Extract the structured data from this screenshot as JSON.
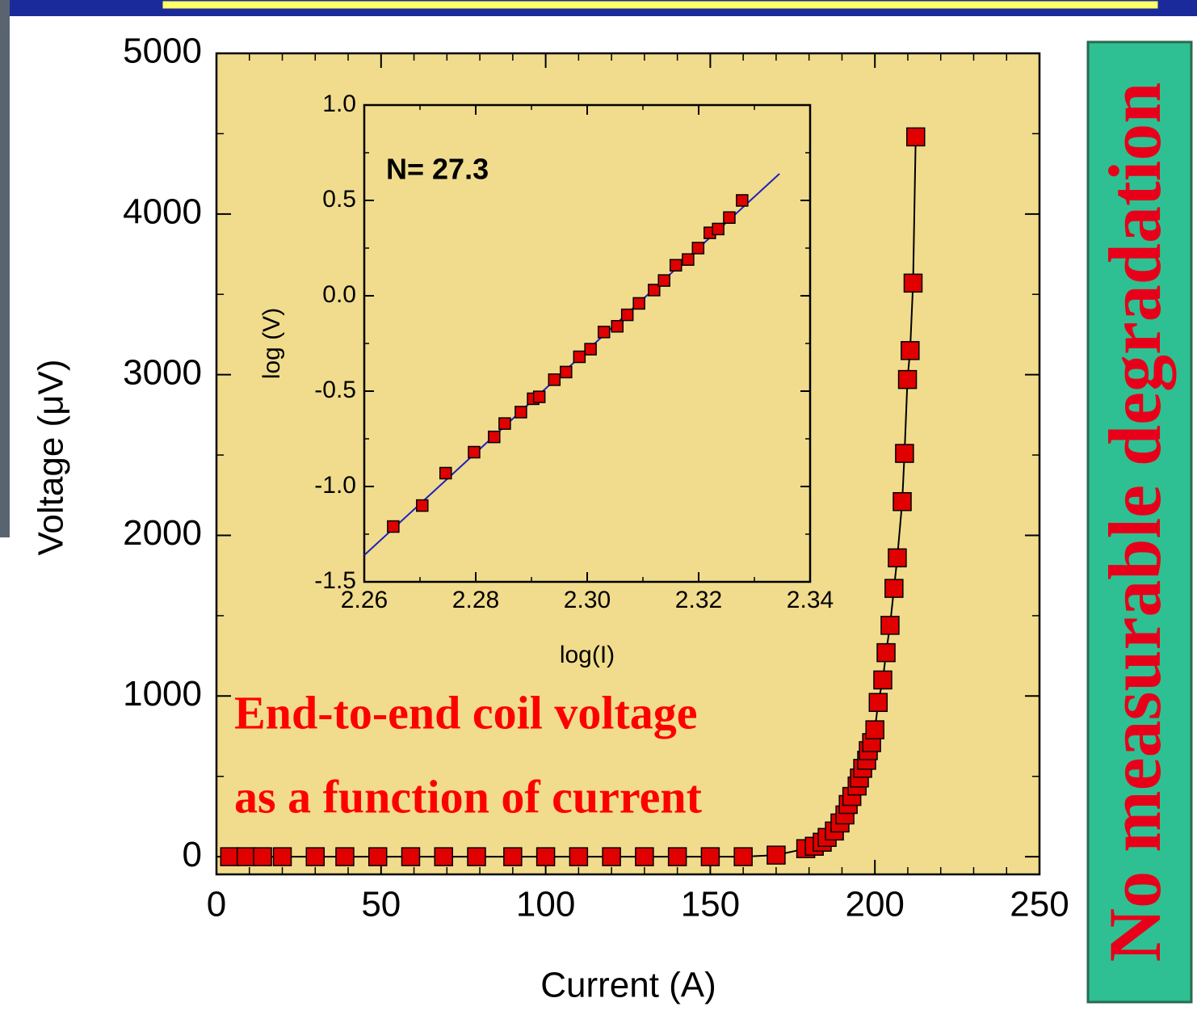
{
  "chart_data": [
    {
      "type": "line",
      "x_label": "Current (A)",
      "y_label": "Voltage (μV)",
      "xlim": [
        0,
        250
      ],
      "xticks": [
        0,
        50,
        100,
        150,
        200,
        250
      ],
      "ylim": [
        -110,
        5000
      ],
      "yticks": [
        0,
        1000,
        2000,
        3000,
        4000,
        5000
      ],
      "background": "#f0dc8c",
      "x": [
        4,
        9,
        14,
        20,
        30,
        39,
        49,
        59,
        69,
        79,
        90,
        100,
        110,
        120,
        130,
        140,
        150,
        160,
        170,
        179,
        181.6,
        184,
        185.5,
        187.7,
        189.4,
        190.9,
        191.9,
        193,
        194.6,
        195.3,
        196.3,
        197.5,
        198,
        199,
        200,
        201,
        202.4,
        203.4,
        204.6,
        205.8,
        206.8,
        208.3,
        209,
        209.9,
        210.7,
        211.6,
        212.4
      ],
      "series": [
        {
          "color": "#e00000",
          "line_color": "#000000",
          "values": [
            0,
            0,
            0,
            0,
            0,
            0,
            0,
            0,
            0,
            0,
            0,
            0,
            0,
            0,
            0,
            0,
            0,
            0,
            10,
            50,
            65,
            90,
            120,
            160,
            210,
            260,
            325,
            375,
            440,
            490,
            550,
            600,
            660,
            710,
            790,
            960,
            1100,
            1270,
            1440,
            1670,
            1860,
            2210,
            2510,
            2970,
            3150,
            3570,
            4480
          ]
        }
      ],
      "annotations": [
        "End-to-end coil voltage",
        "as a function of current"
      ],
      "annotation_color": "#ff0000"
    },
    {
      "type": "scatter",
      "x_label": "log(I)",
      "y_label": "log (V)",
      "xlim": [
        2.26,
        2.34
      ],
      "xticks": [
        2.26,
        2.28,
        {
          "value": 2.3,
          "label": "2.30"
        },
        2.32,
        2.34
      ],
      "ylim": [
        -1.5,
        1.0
      ],
      "yticks": [
        -1.5,
        {
          "value": -1,
          "label": "-1.0"
        },
        -0.5,
        {
          "value": 0,
          "label": "0.0"
        },
        0.5,
        {
          "value": 1,
          "label": "1.0"
        }
      ],
      "background": "#f0dc8c",
      "x": [
        2.2652,
        2.2704,
        2.2746,
        2.2797,
        2.2833,
        2.2852,
        2.2881,
        2.2903,
        2.2914,
        2.2941,
        2.2962,
        2.2986,
        2.3006,
        2.303,
        2.3054,
        2.3072,
        2.3093,
        2.312,
        2.3138,
        2.3159,
        2.3181,
        2.3199,
        2.322,
        2.3235,
        2.3255,
        2.3278
      ],
      "series": [
        {
          "color": "#e00000",
          "values": [
            -1.21,
            -1.1,
            -0.93,
            -0.82,
            -0.74,
            -0.67,
            -0.61,
            -0.54,
            -0.53,
            -0.44,
            -0.4,
            -0.32,
            -0.28,
            -0.19,
            -0.16,
            -0.1,
            -0.04,
            0.03,
            0.08,
            0.16,
            0.19,
            0.25,
            0.33,
            0.35,
            0.41,
            0.5
          ]
        }
      ],
      "fit_line": {
        "x": [
          2.26,
          2.3345
        ],
        "y": [
          -1.36,
          0.64
        ],
        "color": "#2020c0"
      },
      "annotations": [
        "N= 27.3"
      ],
      "annotation_color": "#000000"
    }
  ],
  "side_banner": {
    "text": "No measurable degradation"
  }
}
